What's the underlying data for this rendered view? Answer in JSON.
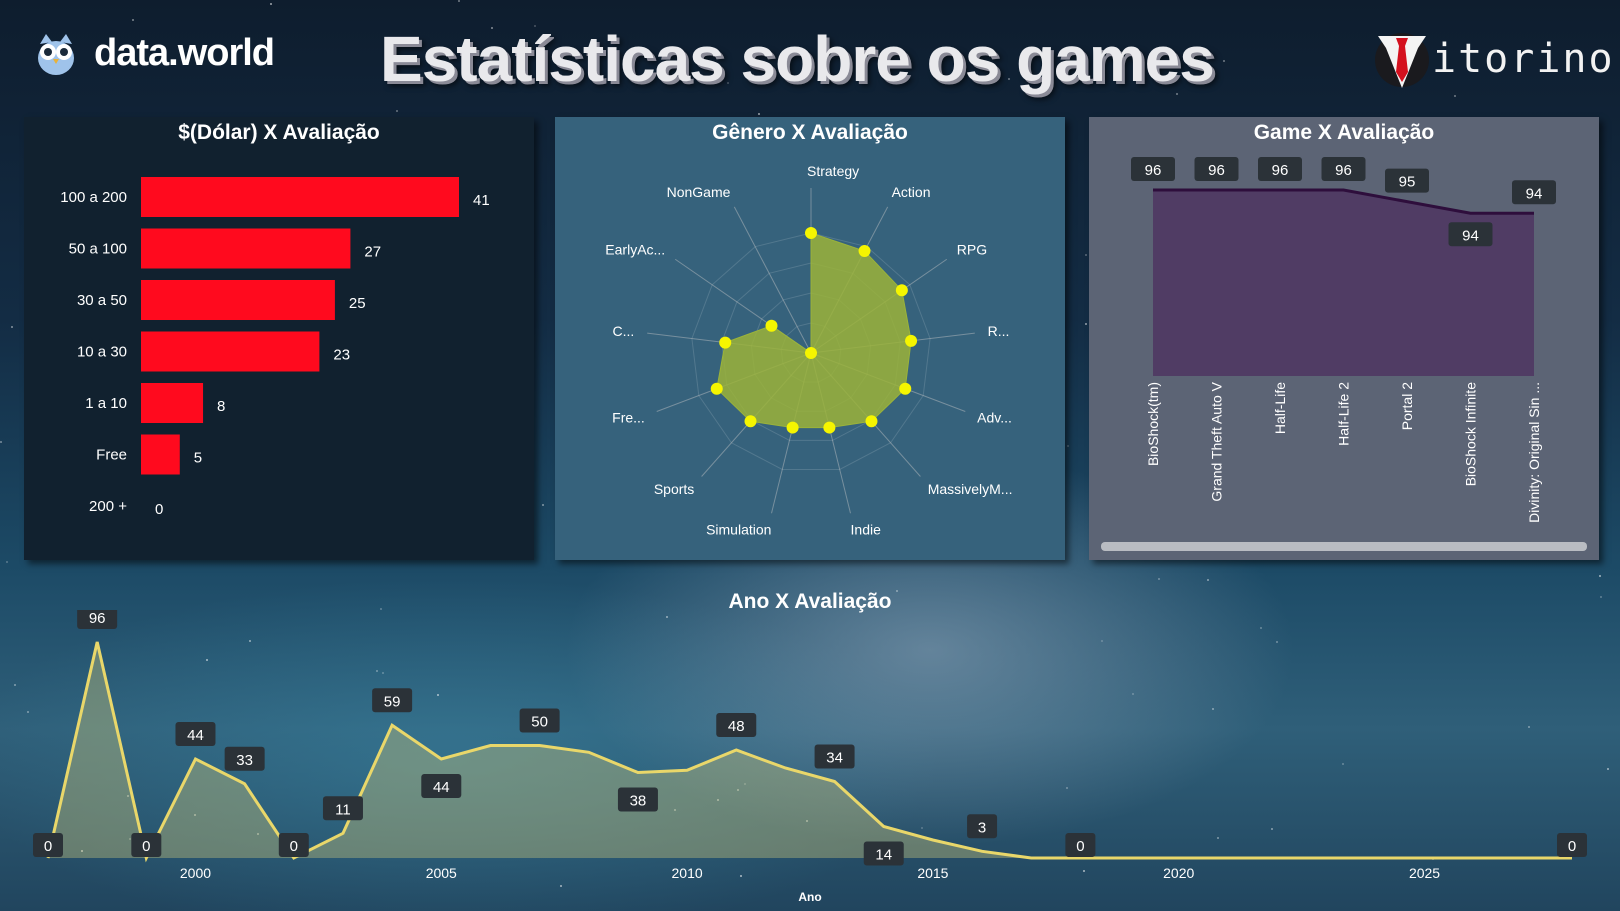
{
  "header": {
    "brand": "data.world",
    "title": "Estatísticas  sobre os games",
    "logo_text": "itorino"
  },
  "colors": {
    "bar": "#ff0a1e",
    "radar_fill": "#9bb33a",
    "radar_point": "#f5f500",
    "area_fill": "#503c64",
    "area_line": "#2e0e3c",
    "year_line": "#e9d76a",
    "year_fill": "#c8c47a",
    "label_box": "#2b3238"
  },
  "chart_data": [
    {
      "type": "bar",
      "title": "$(Dólar) X Avaliação",
      "orientation": "horizontal",
      "categories": [
        "100 a 200",
        "50 a 100",
        "30 a 50",
        "10 a 30",
        "1 a 10",
        "Free",
        "200 +"
      ],
      "values": [
        41,
        27,
        25,
        23,
        8,
        5,
        0
      ],
      "xlim": [
        0,
        41
      ]
    },
    {
      "type": "radar",
      "title": "Gênero X Avaliação",
      "categories": [
        "Strategy",
        "Action",
        "RPG",
        "R...",
        "Adv...",
        "MassivelyM...",
        "Indie",
        "Simulation",
        "Sports",
        "Fre...",
        "C...",
        "EarlyAc...",
        "NonGame"
      ],
      "values": [
        50,
        48,
        46,
        42,
        42,
        38,
        32,
        32,
        38,
        42,
        36,
        20,
        0
      ],
      "max": 100
    },
    {
      "type": "area",
      "title": "Game X Avaliação",
      "categories": [
        "BioShock(tm)",
        "Grand Theft Auto V",
        "Half-Life",
        "Half-Life 2",
        "Portal 2",
        "BioShock Infinite",
        "Divinity: Original Sin ..."
      ],
      "values": [
        96,
        96,
        96,
        96,
        95,
        94,
        94
      ],
      "ylim": [
        0,
        96
      ]
    },
    {
      "type": "area",
      "title": "Ano X Avaliação",
      "xlabel": "Ano",
      "x": [
        1997,
        1998,
        1999,
        2000,
        2001,
        2002,
        2003,
        2004,
        2005,
        2006,
        2007,
        2008,
        2009,
        2010,
        2011,
        2012,
        2013,
        2014,
        2015,
        2016,
        2017,
        2018,
        2019,
        2020,
        2021,
        2022,
        2023,
        2024,
        2025,
        2026,
        2027,
        2028
      ],
      "values": [
        0,
        96,
        0,
        44,
        33,
        0,
        11,
        59,
        44,
        50,
        50,
        47,
        38,
        39,
        48,
        40,
        34,
        14,
        8,
        3,
        0,
        0,
        0,
        0,
        0,
        0,
        0,
        0,
        0,
        0,
        0,
        0
      ],
      "labels": [
        {
          "x": 1997,
          "text": "0"
        },
        {
          "x": 1998,
          "text": "96"
        },
        {
          "x": 1999,
          "text": "0"
        },
        {
          "x": 2000,
          "text": "44"
        },
        {
          "x": 2001,
          "text": "33"
        },
        {
          "x": 2002,
          "text": "0"
        },
        {
          "x": 2003,
          "text": "11"
        },
        {
          "x": 2004,
          "text": "59"
        },
        {
          "x": 2005,
          "text": "44"
        },
        {
          "x": 2007,
          "text": "50"
        },
        {
          "x": 2009,
          "text": "38"
        },
        {
          "x": 2011,
          "text": "48"
        },
        {
          "x": 2013,
          "text": "34"
        },
        {
          "x": 2014,
          "text": "14"
        },
        {
          "x": 2016,
          "text": "3"
        },
        {
          "x": 2018,
          "text": "0"
        },
        {
          "x": 2028,
          "text": "0"
        }
      ],
      "xticks": [
        "2000",
        "2005",
        "2010",
        "2015",
        "2020",
        "2025"
      ],
      "ylim": [
        0,
        96
      ]
    }
  ]
}
